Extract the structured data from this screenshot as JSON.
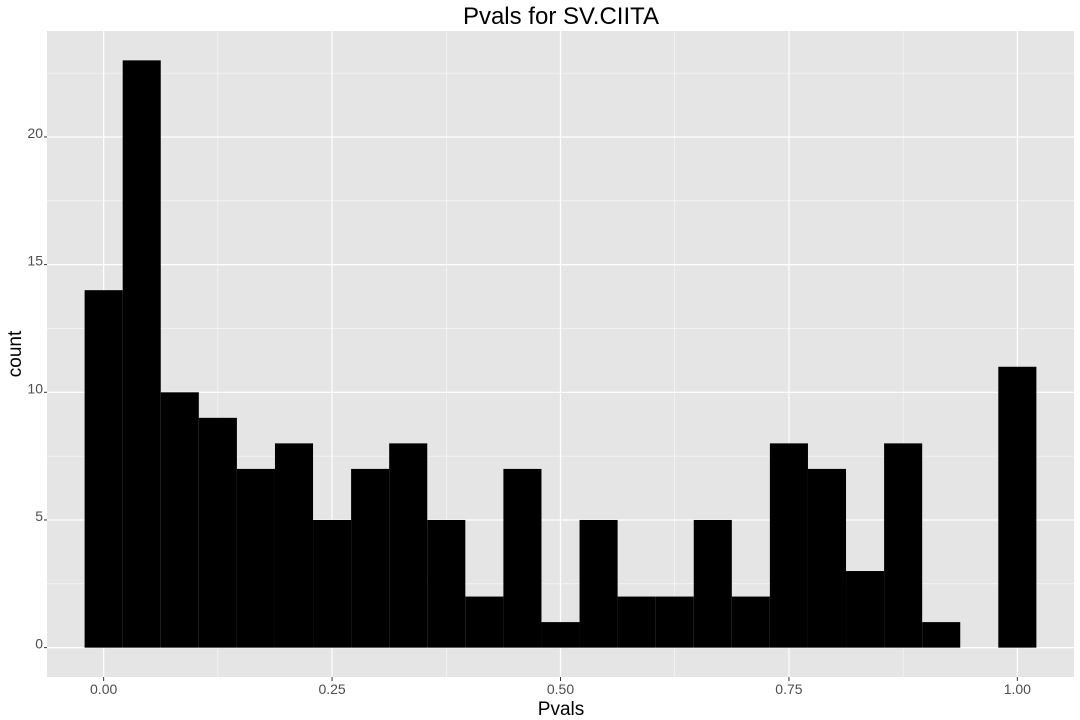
{
  "chart_data": {
    "type": "bar",
    "title": "Pvals for SV.CIITA",
    "xlabel": "Pvals",
    "ylabel": "count",
    "x_ticks": [
      "0.00",
      "0.25",
      "0.50",
      "0.75",
      "1.00"
    ],
    "y_ticks": [
      "0",
      "5",
      "10",
      "15",
      "20"
    ],
    "xlim": [
      -0.062,
      1.062
    ],
    "ylim": [
      -1.15,
      24.15
    ],
    "bin_width": 0.041667,
    "bin_centers": [
      0.0,
      0.041667,
      0.083333,
      0.125,
      0.166667,
      0.208333,
      0.25,
      0.291667,
      0.333333,
      0.375,
      0.416667,
      0.458333,
      0.5,
      0.541667,
      0.583333,
      0.625,
      0.666667,
      0.708333,
      0.75,
      0.791667,
      0.833333,
      0.875,
      0.916667,
      0.958333,
      1.0
    ],
    "counts": [
      14,
      23,
      10,
      9,
      7,
      8,
      5,
      7,
      8,
      5,
      2,
      7,
      1,
      5,
      2,
      2,
      5,
      2,
      8,
      7,
      3,
      8,
      1,
      0,
      11
    ],
    "bar_color": "#000000",
    "panel_background": "#e5e5e5",
    "grid": true,
    "grid_color": "#ffffff"
  }
}
